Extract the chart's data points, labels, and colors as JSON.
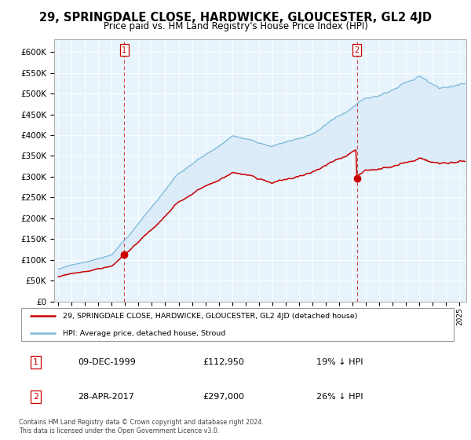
{
  "title": "29, SPRINGDALE CLOSE, HARDWICKE, GLOUCESTER, GL2 4JD",
  "subtitle": "Price paid vs. HM Land Registry's House Price Index (HPI)",
  "title_fontsize": 10.5,
  "subtitle_fontsize": 8.5,
  "ylabel_ticks": [
    "£0",
    "£50K",
    "£100K",
    "£150K",
    "£200K",
    "£250K",
    "£300K",
    "£350K",
    "£400K",
    "£450K",
    "£500K",
    "£550K",
    "£600K"
  ],
  "ytick_values": [
    0,
    50000,
    100000,
    150000,
    200000,
    250000,
    300000,
    350000,
    400000,
    450000,
    500000,
    550000,
    600000
  ],
  "ylim": [
    0,
    630000
  ],
  "xlim_start": 1994.7,
  "xlim_end": 2025.5,
  "sale1_x": 1999.94,
  "sale1_y": 112950,
  "sale2_x": 2017.33,
  "sale2_y": 297000,
  "hpi_color": "#7ab8d9",
  "hpi_fill_color": "#d6eaf8",
  "price_color": "#cc0000",
  "sale_marker_size": 6,
  "legend_house_label": "29, SPRINGDALE CLOSE, HARDWICKE, GLOUCESTER, GL2 4JD (detached house)",
  "legend_hpi_label": "HPI: Average price, detached house, Stroud",
  "table_row1": [
    "1",
    "09-DEC-1999",
    "£112,950",
    "19% ↓ HPI"
  ],
  "table_row2": [
    "2",
    "28-APR-2017",
    "£297,000",
    "26% ↓ HPI"
  ],
  "footnote": "Contains HM Land Registry data © Crown copyright and database right 2024.\nThis data is licensed under the Open Government Licence v3.0.",
  "grid_color": "#cccccc",
  "chart_bg": "#e8f4fb"
}
